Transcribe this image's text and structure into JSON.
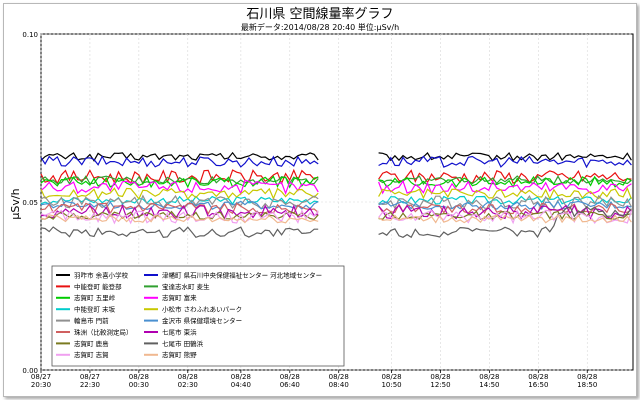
{
  "chart_data": {
    "type": "line",
    "title": "石川県 空間線量率グラフ",
    "subtitle": "最新データ:2014/08/28 20:40 単位:μSv/h",
    "ylabel": "μSv/h",
    "ylim": [
      0.0,
      0.1
    ],
    "y_ticks": [
      "0.00",
      "0.05",
      "0.10"
    ],
    "x_ticks": [
      {
        "date": "08/27",
        "time": "20:30"
      },
      {
        "date": "08/27",
        "time": "22:30"
      },
      {
        "date": "08/28",
        "time": "00:30"
      },
      {
        "date": "08/28",
        "time": "02:30"
      },
      {
        "date": "08/28",
        "time": "04:40"
      },
      {
        "date": "08/28",
        "time": "06:40"
      },
      {
        "date": "08/28",
        "time": "08:40"
      },
      {
        "date": "08/28",
        "time": "10:50"
      },
      {
        "date": "08/28",
        "time": "12:50"
      },
      {
        "date": "08/28",
        "time": "14:50"
      },
      {
        "date": "08/28",
        "time": "16:50"
      },
      {
        "date": "08/28",
        "time": "18:50"
      }
    ],
    "x_hours": [
      0,
      2,
      4,
      6,
      8.17,
      10.17,
      12.17,
      14.33,
      16.33,
      18.33,
      20.33,
      22.33
    ],
    "x_range_hours": [
      0,
      24.2
    ],
    "gap_hours": [
      11.4,
      13.8
    ],
    "grid": true,
    "legend_position": "bottom-left",
    "series": [
      {
        "name": "羽咋市 余喜小学校",
        "color": "#000000",
        "value": 0.0635
      },
      {
        "name": "津幡町 県石川中央保健福祉センター 河北地域センター",
        "color": "#1010cc",
        "value": 0.062
      },
      {
        "name": "中能登町 能登部",
        "color": "#e81010",
        "value": 0.0575
      },
      {
        "name": "宝達志水町 麦生",
        "color": "#30a030",
        "value": 0.0565
      },
      {
        "name": "志賀町 五里峠",
        "color": "#00cc00",
        "value": 0.056
      },
      {
        "name": "志賀町 富来",
        "color": "#ff00ff",
        "value": 0.0545
      },
      {
        "name": "中能登町 末坂",
        "color": "#00cccc",
        "value": 0.0505
      },
      {
        "name": "小松市 さわふれあいパーク",
        "color": "#c8c800",
        "value": 0.0525
      },
      {
        "name": "輪島市 門前",
        "color": "#909090",
        "value": 0.05
      },
      {
        "name": "金沢市 県保健環境センター",
        "color": "#4a90d0",
        "value": 0.049
      },
      {
        "name": "珠洲（比較測定局）",
        "color": "#d06060",
        "value": 0.048
      },
      {
        "name": "七尾市 東浜",
        "color": "#b000b0",
        "value": 0.047
      },
      {
        "name": "志賀町 鹿島",
        "color": "#7a7a20",
        "value": 0.046
      },
      {
        "name": "七尾市 田鶴浜",
        "color": "#606060",
        "value": 0.041
      },
      {
        "name": "志賀町 志賀",
        "color": "#f0a0f0",
        "value": 0.0455
      },
      {
        "name": "志賀町 熊野",
        "color": "#f0b890",
        "value": 0.045
      }
    ]
  }
}
